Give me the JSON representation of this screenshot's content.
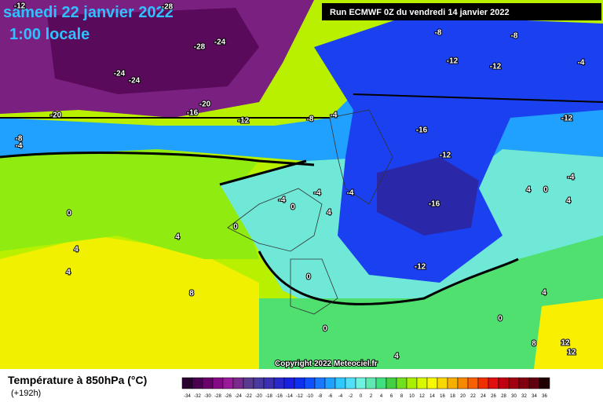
{
  "header": {
    "date": "samedi 22 janvier 2022",
    "time": "1:00 locale",
    "run": "Run ECMWF 0Z du vendredi 14 janvier 2022"
  },
  "copyright": "Copyright 2022 Meteociel.fr",
  "legend": {
    "title": "Température à 850hPa (°C)",
    "lead": "(+192h)",
    "labels": [
      -34,
      -32,
      -30,
      -28,
      -26,
      -24,
      -22,
      -20,
      -18,
      -16,
      -14,
      -12,
      -10,
      -8,
      -6,
      -4,
      -2,
      0,
      2,
      4,
      6,
      8,
      10,
      12,
      14,
      16,
      18,
      20,
      22,
      24,
      26,
      28,
      30,
      32,
      34,
      36
    ],
    "colors": [
      "#2a0030",
      "#4a0050",
      "#6a006a",
      "#860a86",
      "#9a1a9a",
      "#7a2a8a",
      "#5a3a90",
      "#4a3aa0",
      "#3a30b0",
      "#2a28c8",
      "#1a20e0",
      "#1030f0",
      "#1050ff",
      "#1a78ff",
      "#20a0ff",
      "#30c8ff",
      "#50e0f8",
      "#70f0e0",
      "#60e8b0",
      "#40e080",
      "#40d040",
      "#70e020",
      "#a8f000",
      "#d8f800",
      "#f8f800",
      "#f8d800",
      "#f8b000",
      "#f88800",
      "#f86000",
      "#f03000",
      "#e01010",
      "#c00010",
      "#a00010",
      "#800010",
      "#600010",
      "#200000"
    ]
  },
  "contour_labels": [
    -12,
    -28,
    -28,
    -24,
    -24,
    -24,
    -20,
    -16,
    -20,
    -12,
    -8,
    -4,
    -8,
    -4,
    -8,
    -8,
    -12,
    -12,
    -4,
    -16,
    -12,
    -12,
    -4,
    -16,
    -4,
    -4,
    -4,
    0,
    4,
    0,
    0,
    4,
    4,
    4,
    8,
    0,
    -12,
    0,
    4,
    4,
    0,
    8,
    12,
    12,
    4,
    0,
    4
  ]
}
